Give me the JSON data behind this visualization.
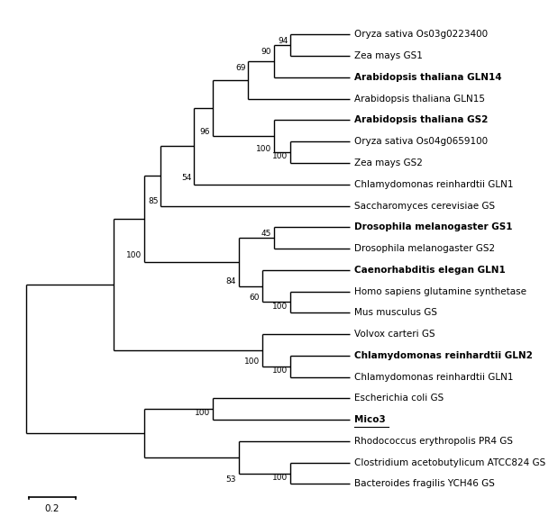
{
  "figsize": [
    6.19,
    5.73
  ],
  "dpi": 100,
  "taxa": [
    "Oryza sativa Os03g0223400",
    "Zea mays GS1",
    "Arabidopsis thaliana GLN14",
    "Arabidopsis thaliana GLN15",
    "Arabidopsis thaliana GS2",
    "Oryza sativa Os04g0659100",
    "Zea mays GS2",
    "Chlamydomonas reinhardtii GLN1",
    "Saccharomyces cerevisiae GS",
    "Drosophila melanogaster GS1",
    "Drosophila melanogaster GS2",
    "Caenorhabditis elegan GLN1",
    "Homo sapiens glutamine synthetase",
    "Mus musculus GS",
    "Volvox carteri GS",
    "Chlamydomonas reinhardtii GLN2",
    "Chlamydomonas reinhardtii GLN1b",
    "Escherichia coli GS",
    "Mico3",
    "Rhodococcus erythropolis PR4 GS",
    "Clostridium acetobutylicum ATCC824 GS",
    "Bacteroides fragilis YCH46 GS"
  ],
  "taxa_display": [
    "Oryza sativa Os03g0223400",
    "Zea mays GS1",
    "Arabidopsis thaliana GLN14",
    "Arabidopsis thaliana GLN15",
    "Arabidopsis thaliana GS2",
    "Oryza sativa Os04g0659100",
    "Zea mays GS2",
    "Chlamydomonas reinhardtii GLN1",
    "Saccharomyces cerevisiae GS",
    "Drosophila melanogaster GS1",
    "Drosophila melanogaster GS2",
    "Caenorhabditis elegan GLN1",
    "Homo sapiens glutamine synthetase",
    "Mus musculus GS",
    "Volvox carteri GS",
    "Chlamydomonas reinhardtii GLN2",
    "Chlamydomonas reinhardtii GLN1",
    "Escherichia coli GS",
    "Mico3",
    "Rhodococcus erythropolis PR4 GS",
    "Clostridium acetobutylicum ATCC824 GS",
    "Bacteroides fragilis YCH46 GS"
  ],
  "bold_taxa": [
    "Arabidopsis thaliana GLN14",
    "Arabidopsis thaliana GS2",
    "Drosophila melanogaster GS1",
    "Caenorhabditis elegan GLN1",
    "Chlamydomonas reinhardtii GLN2",
    "Mico3"
  ],
  "underline_taxa": [
    "Mico3"
  ],
  "scale_bar_value": "0.2",
  "background": "#ffffff",
  "line_color": "#000000",
  "font_size": 7.5,
  "tip_x": 1.42,
  "xlim": [
    -0.05,
    1.95
  ],
  "ylim": [
    0.0,
    23.5
  ]
}
